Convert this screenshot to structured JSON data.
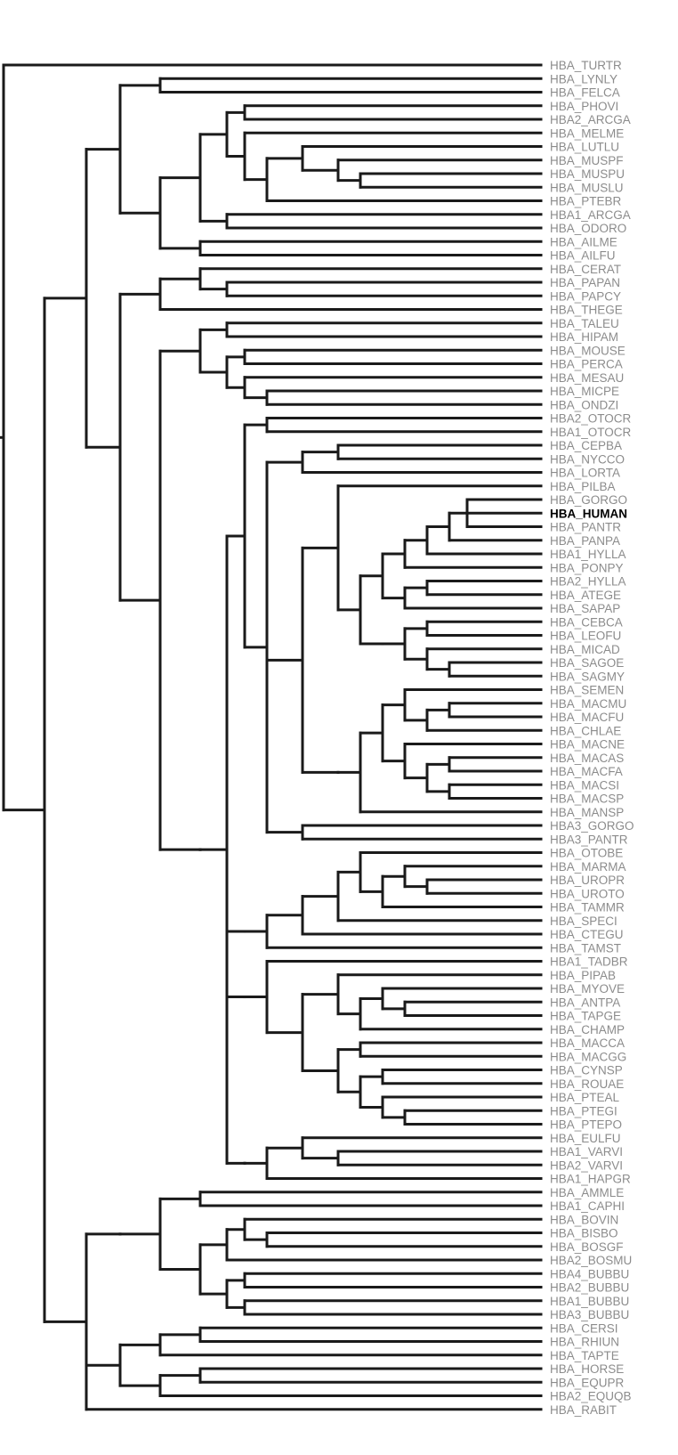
{
  "tree": {
    "highlight": "HBA_HUMAN",
    "colors": {
      "branch": "#1a1a1a",
      "label": "#8c8c8c",
      "highlight": "#000000"
    },
    "leaves": [
      "HBA_TURTR",
      "HBA_LYNLY",
      "HBA_FELCA",
      "HBA_PHOVI",
      "HBA2_ARCGA",
      "HBA_MELME",
      "HBA_LUTLU",
      "HBA_MUSPF",
      "HBA_MUSPU",
      "HBA_MUSLU",
      "HBA_PTEBR",
      "HBA1_ARCGA",
      "HBA_ODORO",
      "HBA_AILME",
      "HBA_AILFU",
      "HBA_CERAT",
      "HBA_PAPAN",
      "HBA_PAPCY",
      "HBA_THEGE",
      "HBA_TALEU",
      "HBA_HIPAM",
      "HBA_MOUSE",
      "HBA_PERCA",
      "HBA_MESAU",
      "HBA_MICPE",
      "HBA_ONDZI",
      "HBA2_OTOCR",
      "HBA1_OTOCR",
      "HBA_CEPBA",
      "HBA_NYCCO",
      "HBA_LORTA",
      "HBA_PILBA",
      "HBA_GORGO",
      "HBA_HUMAN",
      "HBA_PANTR",
      "HBA_PANPA",
      "HBA1_HYLLA",
      "HBA_PONPY",
      "HBA2_HYLLA",
      "HBA_ATEGE",
      "HBA_SAPAP",
      "HBA_CEBCA",
      "HBA_LEOFU",
      "HBA_MICAD",
      "HBA_SAGOE",
      "HBA_SAGMY",
      "HBA_SEMEN",
      "HBA_MACMU",
      "HBA_MACFU",
      "HBA_CHLAE",
      "HBA_MACNE",
      "HBA_MACAS",
      "HBA_MACFA",
      "HBA_MACSI",
      "HBA_MACSP",
      "HBA_MANSP",
      "HBA3_GORGO",
      "HBA3_PANTR",
      "HBA_OTOBE",
      "HBA_MARMA",
      "HBA_UROPR",
      "HBA_UROTO",
      "HBA_TAMMR",
      "HBA_SPECI",
      "HBA_CTEGU",
      "HBA_TAMST",
      "HBA1_TADBR",
      "HBA_PIPAB",
      "HBA_MYOVE",
      "HBA_ANTPA",
      "HBA_TAPGE",
      "HBA_CHAMP",
      "HBA_MACCA",
      "HBA_MACGG",
      "HBA_CYNSP",
      "HBA_ROUAE",
      "HBA_PTEAL",
      "HBA_PTEGI",
      "HBA_PTEPO",
      "HBA_EULFU",
      "HBA1_VARVI",
      "HBA2_VARVI",
      "HBA1_HAPGR",
      "HBA_AMMLE",
      "HBA1_CAPHI",
      "HBA_BOVIN",
      "HBA_BISBO",
      "HBA_BOSGF",
      "HBA2_BOSMU",
      "HBA4_BUBBU",
      "HBA2_BUBBU",
      "HBA1_BUBBU",
      "HBA3_BUBBU",
      "HBA_CERSI",
      "HBA_RHIUN",
      "HBA_TAPTE",
      "HBA_HORSE",
      "HBA_EQUPR",
      "HBA2_EQUQB",
      "HBA_RABIT"
    ],
    "newick": "(HBA_TURTR,((((HBA_LYNLY,HBA_FELCA),((((HBA_PHOVI,HBA2_ARCGA),(HBA_MELME,((HBA_LUTLU,(HBA_MUSPF,(HBA_MUSPU,HBA_MUSLU))),HBA_PTEBR))),(HBA1_ARCGA,HBA_ODORO)),(HBA_AILME,HBA_AILFU))),(((HBA_CERAT,(HBA_PAPAN,HBA_PAPCY)),HBA_THEGE),(((HBA_TALEU,HBA_HIPAM),((HBA_MOUSE,HBA_PERCA),(HBA_MESAU,(HBA_MICPE,HBA_ONDZI)))),((((HBA2_OTOCR,HBA1_OTOCR),(((HBA_CEPBA,HBA_NYCCO),HBA_LORTA),((HBA_PILBA,((((((HBA_GORGO,HBA_HUMAN,HBA_PANTR),HBA_PANPA),HBA1_HYLLA),HBA_PONPY),((HBA2_HYLLA,HBA_ATEGE),HBA_SAPAP)),(((HBA_CEBCA,HBA_LEOFU),(HBA_MICAD,(HBA_SAGOE,HBA_SAGMY)))))),((((HBA_SEMEN,((HBA_MACMU,HBA_MACFU),HBA_CHLAE)),(HBA_MACNE,((HBA_MACAS,HBA_MACFA),(HBA_MACSI,HBA_MACSP)))),HBA_MANSP))),(HBA3_GORGO,HBA3_PANTR))),(((((HBA_OTOBE,((HBA_MARMA,(HBA_UROPR,HBA_UROTO)),HBA_TAMMR)),HBA_SPECI),HBA_CTEGU),HBA_TAMST)),((HBA1_TADBR,((HBA_PIPAB,((HBA_MYOVE,(HBA_ANTPA,HBA_TAPGE)),HBA_CHAMP)),((HBA_MACCA,HBA_MACGG),((HBA_CYNSP,HBA_ROUAE),(HBA_PTEAL,(HBA_PTEGI,HBA_PTEPO))))))),(((HBA_EULFU,(HBA1_VARVI,HBA2_VARVI)),HBA1_HAPGR))))))),((((HBA_AMMLE,HBA1_CAPHI),(((HBA_BOVIN,(HBA_BISBO,HBA_BOSGF)),HBA2_BOSMU),((HBA4_BUBBU,HBA2_BUBBU),(HBA1_BUBBU,HBA3_BUBBU))))),(((HBA_CERSI,HBA_RHIUN),HBA_TAPTE),((HBA_HORSE,HBA_EQUPR),HBA2_EQUQB)),HBA_RABIT)));"
  }
}
